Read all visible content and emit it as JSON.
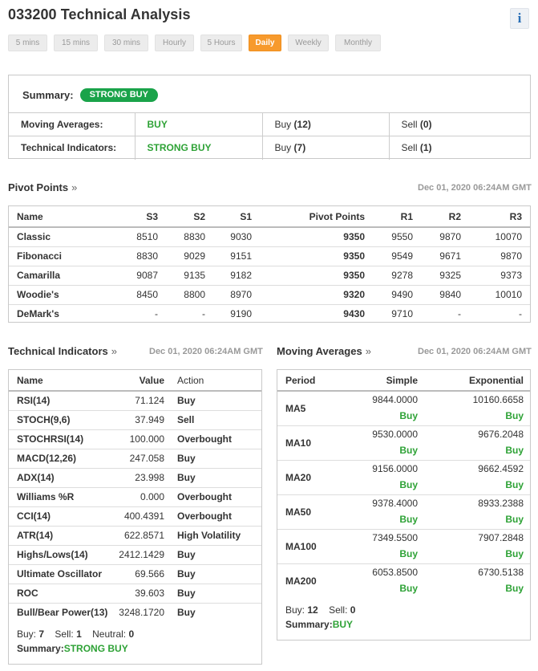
{
  "header": {
    "title": "033200 Technical Analysis",
    "info_icon": "info-icon"
  },
  "timeframes": [
    "5 mins",
    "15 mins",
    "30 mins",
    "Hourly",
    "5 Hours",
    "Daily",
    "Weekly",
    "Monthly"
  ],
  "active_timeframe": "Daily",
  "summary": {
    "label": "Summary:",
    "badge": "STRONG BUY",
    "badge_color": "#1aa34a",
    "rows": [
      {
        "name": "Moving Averages:",
        "signal": "BUY",
        "buy_label": "Buy",
        "buy_count": "(12)",
        "sell_label": "Sell",
        "sell_count": "(0)"
      },
      {
        "name": "Technical Indicators:",
        "signal": "STRONG BUY",
        "buy_label": "Buy",
        "buy_count": "(7)",
        "sell_label": "Sell",
        "sell_count": "(1)"
      }
    ]
  },
  "pivot": {
    "title": "Pivot Points",
    "raquo": "»",
    "timestamp": "Dec 01, 2020 06:24AM GMT",
    "columns": [
      "Name",
      "S3",
      "S2",
      "S1",
      "Pivot Points",
      "R1",
      "R2",
      "R3"
    ],
    "rows": [
      [
        "Classic",
        "8510",
        "8830",
        "9030",
        "9350",
        "9550",
        "9870",
        "10070"
      ],
      [
        "Fibonacci",
        "8830",
        "9029",
        "9151",
        "9350",
        "9549",
        "9671",
        "9870"
      ],
      [
        "Camarilla",
        "9087",
        "9135",
        "9182",
        "9350",
        "9278",
        "9325",
        "9373"
      ],
      [
        "Woodie's",
        "8450",
        "8800",
        "8970",
        "9320",
        "9490",
        "9840",
        "10010"
      ],
      [
        "DeMark's",
        "-",
        "-",
        "9190",
        "9430",
        "9710",
        "-",
        "-"
      ]
    ]
  },
  "technical_indicators": {
    "title": "Technical Indicators",
    "raquo": "»",
    "timestamp": "Dec 01, 2020 06:24AM GMT",
    "columns": [
      "Name",
      "Value",
      "Action"
    ],
    "rows": [
      {
        "name": "RSI(14)",
        "value": "71.124",
        "action": "Buy",
        "type": "buy"
      },
      {
        "name": "STOCH(9,6)",
        "value": "37.949",
        "action": "Sell",
        "type": "sell"
      },
      {
        "name": "STOCHRSI(14)",
        "value": "100.000",
        "action": "Overbought",
        "type": "neutral"
      },
      {
        "name": "MACD(12,26)",
        "value": "247.058",
        "action": "Buy",
        "type": "buy"
      },
      {
        "name": "ADX(14)",
        "value": "23.998",
        "action": "Buy",
        "type": "buy"
      },
      {
        "name": "Williams %R",
        "value": "0.000",
        "action": "Overbought",
        "type": "neutral"
      },
      {
        "name": "CCI(14)",
        "value": "400.4391",
        "action": "Overbought",
        "type": "neutral"
      },
      {
        "name": "ATR(14)",
        "value": "622.8571",
        "action": "High Volatility",
        "type": "neutral"
      },
      {
        "name": "Highs/Lows(14)",
        "value": "2412.1429",
        "action": "Buy",
        "type": "buy"
      },
      {
        "name": "Ultimate Oscillator",
        "value": "69.566",
        "action": "Buy",
        "type": "buy"
      },
      {
        "name": "ROC",
        "value": "39.603",
        "action": "Buy",
        "type": "buy"
      },
      {
        "name": "Bull/Bear Power(13)",
        "value": "3248.1720",
        "action": "Buy",
        "type": "buy"
      }
    ],
    "footer": {
      "buy_label": "Buy:",
      "buy": "7",
      "sell_label": "Sell:",
      "sell": "1",
      "neutral_label": "Neutral:",
      "neutral": "0",
      "summary_label": "Summary:",
      "summary": "STRONG BUY"
    }
  },
  "moving_averages": {
    "title": "Moving Averages",
    "raquo": "»",
    "timestamp": "Dec 01, 2020 06:24AM GMT",
    "columns": [
      "Period",
      "Simple",
      "Exponential"
    ],
    "rows": [
      {
        "period": "MA5",
        "simple": "9844.0000",
        "simple_action": "Buy",
        "exp": "10160.6658",
        "exp_action": "Buy"
      },
      {
        "period": "MA10",
        "simple": "9530.0000",
        "simple_action": "Buy",
        "exp": "9676.2048",
        "exp_action": "Buy"
      },
      {
        "period": "MA20",
        "simple": "9156.0000",
        "simple_action": "Buy",
        "exp": "9662.4592",
        "exp_action": "Buy"
      },
      {
        "period": "MA50",
        "simple": "9378.4000",
        "simple_action": "Buy",
        "exp": "8933.2388",
        "exp_action": "Buy"
      },
      {
        "period": "MA100",
        "simple": "7349.5500",
        "simple_action": "Buy",
        "exp": "7907.2848",
        "exp_action": "Buy"
      },
      {
        "period": "MA200",
        "simple": "6053.8500",
        "simple_action": "Buy",
        "exp": "6730.5138",
        "exp_action": "Buy"
      }
    ],
    "footer": {
      "buy_label": "Buy:",
      "buy": "12",
      "sell_label": "Sell:",
      "sell": "0",
      "summary_label": "Summary:",
      "summary": "BUY"
    }
  },
  "colors": {
    "buy": "#2ea236",
    "sell": "#e0141e",
    "active_tab": "#f79a2c"
  }
}
